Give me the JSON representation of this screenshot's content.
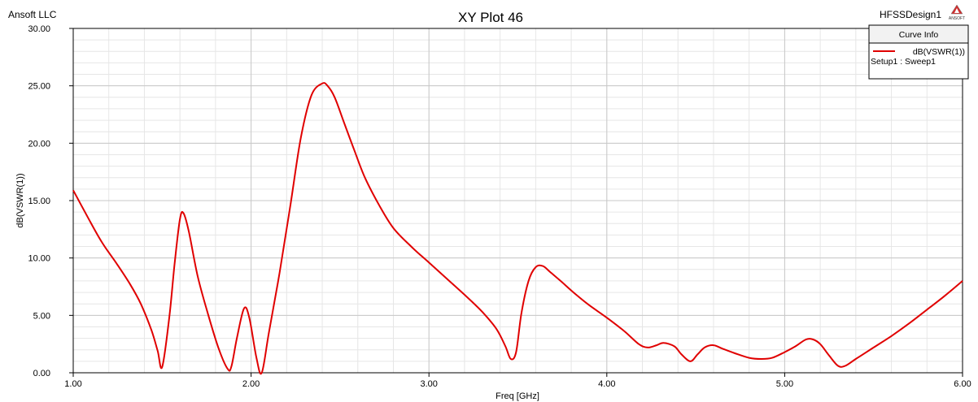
{
  "company": "Ansoft LLC",
  "design_name": "HFSSDesign1",
  "logo_text": "ANSOFT",
  "chart_data": {
    "type": "line",
    "title": "XY Plot 46",
    "xlabel": "Freq [GHz]",
    "ylabel": "dB(VSWR(1))",
    "xlim": [
      1.0,
      6.0
    ],
    "ylim": [
      0.0,
      30.0
    ],
    "x_ticks": [
      {
        "value": 1.0,
        "label": "1.00"
      },
      {
        "value": 2.0,
        "label": "2.00"
      },
      {
        "value": 3.0,
        "label": "3.00"
      },
      {
        "value": 4.0,
        "label": "4.00"
      },
      {
        "value": 5.0,
        "label": "5.00"
      },
      {
        "value": 6.0,
        "label": "6.00"
      }
    ],
    "y_ticks": [
      {
        "value": 0,
        "label": "0.00"
      },
      {
        "value": 5,
        "label": "5.00"
      },
      {
        "value": 10,
        "label": "10.00"
      },
      {
        "value": 15,
        "label": "15.00"
      },
      {
        "value": 20,
        "label": "20.00"
      },
      {
        "value": 25,
        "label": "25.00"
      },
      {
        "value": 30,
        "label": "30.00"
      }
    ],
    "grid": true,
    "legend": {
      "title": "Curve Info",
      "placement": "top-right"
    },
    "series": [
      {
        "name": "dB(VSWR(1))",
        "sublabel": "Setup1 : Sweep1",
        "color": "#e00000",
        "x": [
          1.0,
          1.08,
          1.16,
          1.24,
          1.32,
          1.38,
          1.44,
          1.475,
          1.5,
          1.54,
          1.57,
          1.6,
          1.62,
          1.65,
          1.7,
          1.76,
          1.82,
          1.87,
          1.89,
          1.92,
          1.96,
          1.99,
          2.03,
          2.06,
          2.1,
          2.16,
          2.22,
          2.28,
          2.34,
          2.4,
          2.43,
          2.47,
          2.52,
          2.58,
          2.64,
          2.72,
          2.8,
          2.9,
          3.0,
          3.1,
          3.2,
          3.3,
          3.38,
          3.43,
          3.46,
          3.49,
          3.52,
          3.56,
          3.6,
          3.64,
          3.68,
          3.74,
          3.82,
          3.9,
          4.0,
          4.1,
          4.18,
          4.23,
          4.28,
          4.32,
          4.38,
          4.42,
          4.47,
          4.51,
          4.55,
          4.6,
          4.65,
          4.72,
          4.8,
          4.87,
          4.93,
          5.0,
          5.06,
          5.12,
          5.16,
          5.2,
          5.25,
          5.3,
          5.34,
          5.4,
          5.5,
          5.6,
          5.7,
          5.8,
          5.9,
          6.0
        ],
        "y": [
          15.9,
          13.6,
          11.4,
          9.6,
          7.7,
          6.0,
          3.7,
          1.9,
          0.5,
          4.8,
          9.5,
          13.4,
          13.9,
          12.3,
          8.4,
          5.0,
          2.0,
          0.3,
          0.6,
          3.0,
          5.6,
          4.8,
          1.3,
          0.0,
          3.5,
          8.7,
          14.5,
          20.5,
          24.2,
          25.2,
          25.0,
          24.0,
          21.9,
          19.4,
          17.0,
          14.6,
          12.6,
          11.0,
          9.6,
          8.2,
          6.8,
          5.3,
          3.8,
          2.3,
          1.2,
          1.8,
          5.2,
          8.0,
          9.2,
          9.3,
          8.8,
          8.0,
          6.9,
          5.9,
          4.8,
          3.6,
          2.5,
          2.2,
          2.4,
          2.6,
          2.3,
          1.6,
          1.0,
          1.6,
          2.2,
          2.4,
          2.1,
          1.7,
          1.3,
          1.2,
          1.3,
          1.8,
          2.3,
          2.9,
          2.9,
          2.5,
          1.5,
          0.6,
          0.6,
          1.2,
          2.2,
          3.2,
          4.3,
          5.5,
          6.7,
          8.0
        ]
      }
    ]
  }
}
